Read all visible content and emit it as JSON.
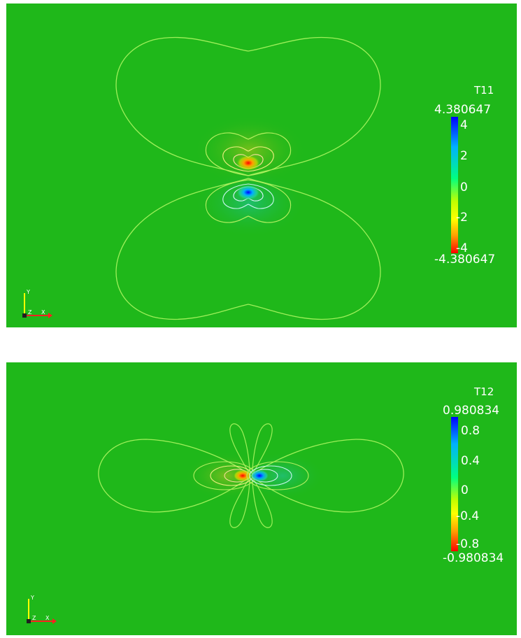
{
  "colors": {
    "background": "#1fb81a",
    "contour": "#9ef05a",
    "cmap_low": "#ff0000",
    "cmap_mid_low": "#ffff00",
    "cmap_mid": "#00ff40",
    "cmap_mid_high": "#00e0ff",
    "cmap_high": "#0000ff"
  },
  "top_panel": {
    "colorbar": {
      "title": "T11",
      "max": "4.380647",
      "min": "-4.380647",
      "ticks": [
        "4",
        "2",
        "0",
        "-2",
        "-4"
      ]
    },
    "axes": {
      "x": "X",
      "y": "Y",
      "z": "Z"
    }
  },
  "bottom_panel": {
    "colorbar": {
      "title": "T12",
      "max": "0.980834",
      "min": "-0.980834",
      "ticks": [
        "0.8",
        "0.4",
        "0",
        "-0.4",
        "-0.8"
      ]
    },
    "axes": {
      "x": "X",
      "y": "Y",
      "z": "Z"
    }
  }
}
